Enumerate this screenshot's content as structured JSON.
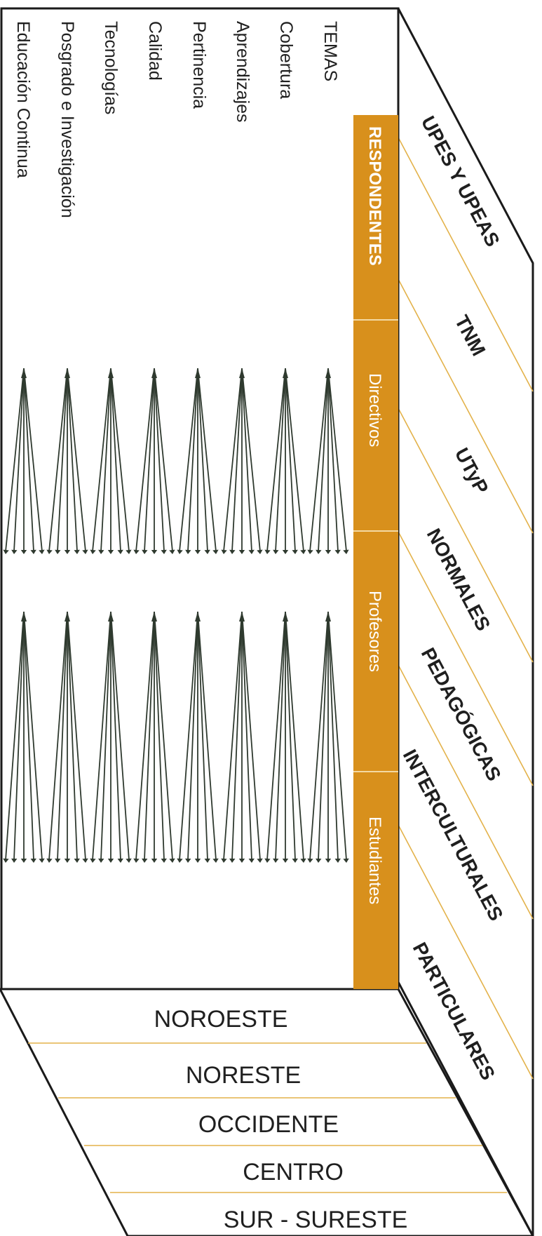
{
  "header": {
    "temas_label": "TEMAS",
    "respondents_label": "RESPONDENTES"
  },
  "topics": [
    "Cobertura",
    "Aprendizajes",
    "Pertinencia",
    "Calidad",
    "Tecnologías",
    "Posgrado e Investigación",
    "Educación Continua"
  ],
  "respondents": [
    "Directivos",
    "Profesores",
    "Estudiantes"
  ],
  "institutions": [
    "UPES Y UPEAS",
    "TNM",
    "UTyP",
    "NORMALES",
    "PEDAGÓGICAS",
    "INTERCULTURALES",
    "PARTICULARES"
  ],
  "regions": [
    "NOROESTE",
    "NORESTE",
    "OCCIDENTE",
    "CENTRO",
    "SUR - SURESTE"
  ],
  "colors": {
    "orange": "#D8901C",
    "line_gold": "#E3B24A",
    "arrow_dark": "#2F3A2F",
    "outline": "#1a1a1a",
    "text": "#1f1f1f"
  }
}
